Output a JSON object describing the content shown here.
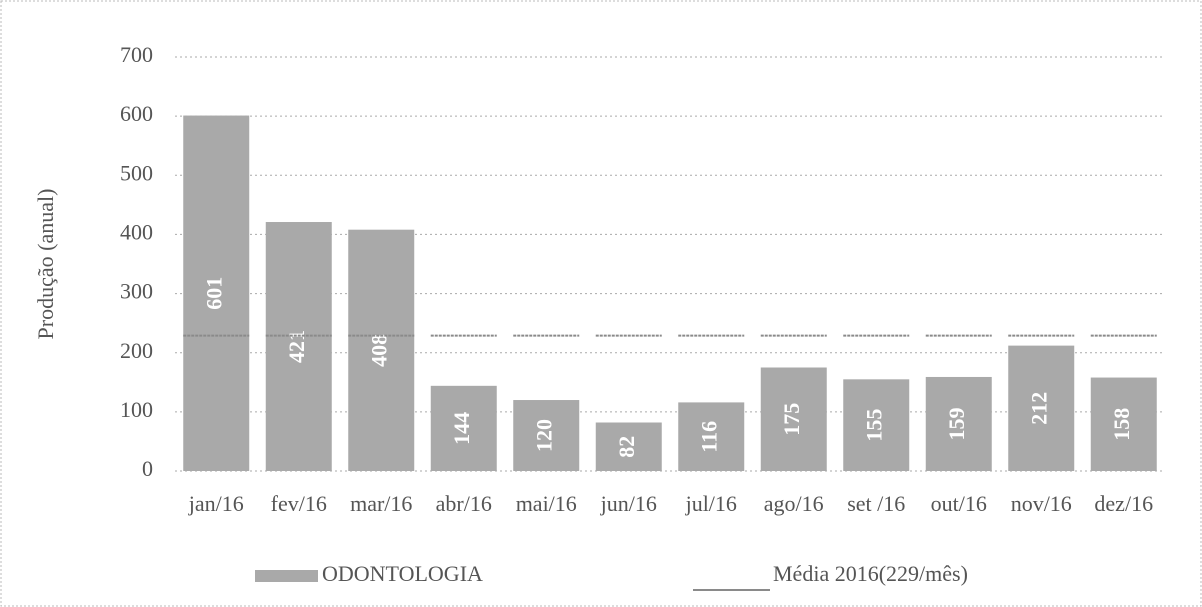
{
  "chart_data": {
    "type": "bar",
    "y_label": "Produção (anual)",
    "categories": [
      "jan/16",
      "fev/16",
      "mar/16",
      "abr/16",
      "mai/16",
      "jun/16",
      "jul/16",
      "ago/16",
      "set /16",
      "out/16",
      "nov/16",
      "dez/16"
    ],
    "series": [
      {
        "name": "ODONTOLOGIA",
        "type": "bar",
        "color": "#a9a9a9",
        "values": [
          601,
          421,
          408,
          144,
          120,
          82,
          116,
          175,
          155,
          159,
          212,
          158
        ]
      },
      {
        "name": "Média 2016(229/mês)",
        "type": "line",
        "color": "#8a8a8a",
        "values": [
          229,
          229,
          229,
          229,
          229,
          229,
          229,
          229,
          229,
          229,
          229,
          229
        ]
      }
    ],
    "ylim": [
      0,
      700
    ],
    "yticks": [
      0,
      100,
      200,
      300,
      400,
      500,
      600,
      700
    ],
    "grid": true,
    "legend": "bottom"
  }
}
